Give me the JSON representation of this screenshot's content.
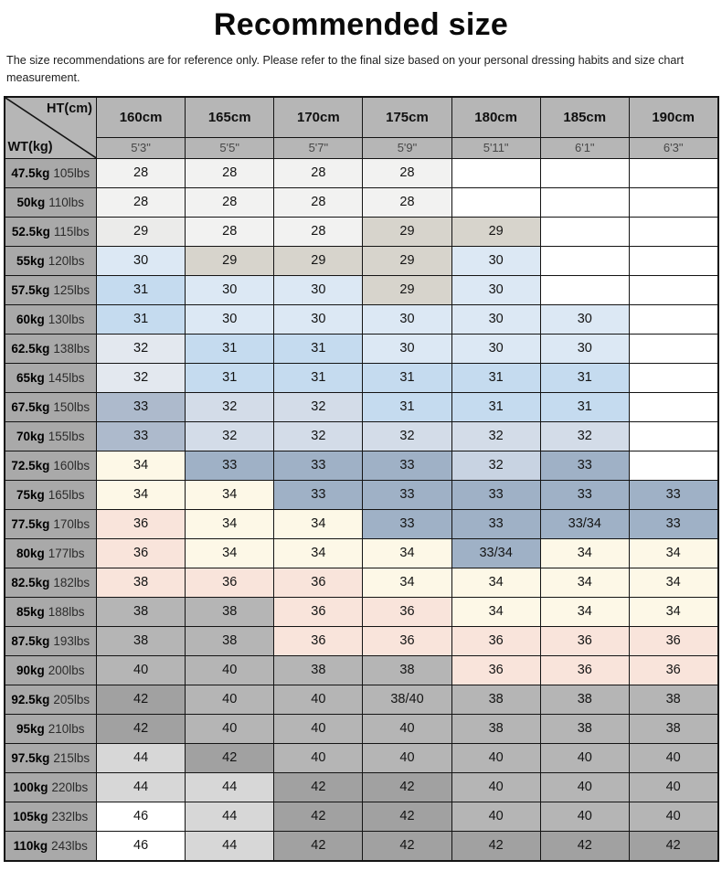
{
  "page": {
    "title": "Recommended size",
    "disclaimer": "The size recommendations are for reference only. Please refer to the final size based on your personal dressing habits and size chart measurement."
  },
  "chart_data": {
    "type": "table",
    "title": "Recommended size",
    "corner": {
      "ht": "HT(cm)",
      "wt": "WT(kg)"
    },
    "columns_cm": [
      "160cm",
      "165cm",
      "170cm",
      "175cm",
      "180cm",
      "185cm",
      "190cm"
    ],
    "columns_ft": [
      "5'3\"",
      "5'5\"",
      "5'7\"",
      "5'9\"",
      "5'11\"",
      "6'1\"",
      "6'3\""
    ],
    "rows": [
      {
        "kg": "47.5kg",
        "lbs": "105lbs",
        "sizes": [
          "28",
          "28",
          "28",
          "28",
          "",
          "",
          ""
        ]
      },
      {
        "kg": "50kg",
        "lbs": "110lbs",
        "sizes": [
          "28",
          "28",
          "28",
          "28",
          "",
          "",
          ""
        ]
      },
      {
        "kg": "52.5kg",
        "lbs": "115lbs",
        "sizes": [
          "29",
          "28",
          "28",
          "29",
          "29",
          "",
          ""
        ]
      },
      {
        "kg": "55kg",
        "lbs": "120lbs",
        "sizes": [
          "30",
          "29",
          "29",
          "29",
          "30",
          "",
          ""
        ]
      },
      {
        "kg": "57.5kg",
        "lbs": "125lbs",
        "sizes": [
          "31",
          "30",
          "30",
          "29",
          "30",
          "",
          ""
        ]
      },
      {
        "kg": "60kg",
        "lbs": "130lbs",
        "sizes": [
          "31",
          "30",
          "30",
          "30",
          "30",
          "30",
          ""
        ]
      },
      {
        "kg": "62.5kg",
        "lbs": "138lbs",
        "sizes": [
          "32",
          "31",
          "31",
          "30",
          "30",
          "30",
          ""
        ]
      },
      {
        "kg": "65kg",
        "lbs": "145lbs",
        "sizes": [
          "32",
          "31",
          "31",
          "31",
          "31",
          "31",
          ""
        ]
      },
      {
        "kg": "67.5kg",
        "lbs": "150lbs",
        "sizes": [
          "33",
          "32",
          "32",
          "31",
          "31",
          "31",
          ""
        ]
      },
      {
        "kg": "70kg",
        "lbs": "155lbs",
        "sizes": [
          "33",
          "32",
          "32",
          "32",
          "32",
          "32",
          ""
        ]
      },
      {
        "kg": "72.5kg",
        "lbs": "160lbs",
        "sizes": [
          "34",
          "33",
          "33",
          "33",
          "32",
          "33",
          ""
        ]
      },
      {
        "kg": "75kg",
        "lbs": "165lbs",
        "sizes": [
          "34",
          "34",
          "33",
          "33",
          "33",
          "33",
          "33"
        ]
      },
      {
        "kg": "77.5kg",
        "lbs": "170lbs",
        "sizes": [
          "36",
          "34",
          "34",
          "33",
          "33",
          "33/34",
          "33"
        ]
      },
      {
        "kg": "80kg",
        "lbs": "177lbs",
        "sizes": [
          "36",
          "34",
          "34",
          "34",
          "33/34",
          "34",
          "34"
        ]
      },
      {
        "kg": "82.5kg",
        "lbs": "182lbs",
        "sizes": [
          "38",
          "36",
          "36",
          "34",
          "34",
          "34",
          "34"
        ]
      },
      {
        "kg": "85kg",
        "lbs": "188lbs",
        "sizes": [
          "38",
          "38",
          "36",
          "36",
          "34",
          "34",
          "34"
        ]
      },
      {
        "kg": "87.5kg",
        "lbs": "193lbs",
        "sizes": [
          "38",
          "38",
          "36",
          "36",
          "36",
          "36",
          "36"
        ]
      },
      {
        "kg": "90kg",
        "lbs": "200lbs",
        "sizes": [
          "40",
          "40",
          "38",
          "38",
          "36",
          "36",
          "36"
        ]
      },
      {
        "kg": "92.5kg",
        "lbs": "205lbs",
        "sizes": [
          "42",
          "40",
          "40",
          "38/40",
          "38",
          "38",
          "38"
        ]
      },
      {
        "kg": "95kg",
        "lbs": "210lbs",
        "sizes": [
          "42",
          "40",
          "40",
          "40",
          "38",
          "38",
          "38"
        ]
      },
      {
        "kg": "97.5kg",
        "lbs": "215lbs",
        "sizes": [
          "44",
          "42",
          "40",
          "40",
          "40",
          "40",
          "40"
        ]
      },
      {
        "kg": "100kg",
        "lbs": "220lbs",
        "sizes": [
          "44",
          "44",
          "42",
          "42",
          "40",
          "40",
          "40"
        ]
      },
      {
        "kg": "105kg",
        "lbs": "232lbs",
        "sizes": [
          "46",
          "44",
          "42",
          "42",
          "40",
          "40",
          "40"
        ]
      },
      {
        "kg": "110kg",
        "lbs": "243lbs",
        "sizes": [
          "46",
          "44",
          "42",
          "42",
          "42",
          "42",
          "42"
        ]
      }
    ]
  },
  "styles": {
    "header_bg": "#b6b6b6",
    "row_label_bg": "#a9a9a9",
    "border_color": "#141414",
    "palette": {
      "g0": "#f2f2f1",
      "g1": "#ebebea",
      "wg": "#d7d4cc",
      "b0": "#dce8f4",
      "b1": "#c5dbef",
      "bg0": "#e3e8ef",
      "bg1": "#d3dce8",
      "bg2": "#c8d3e2",
      "bg3": "#adbacc",
      "bg4": "#9fb1c6",
      "cr": "#fdf8e7",
      "pk": "#f9e4db",
      "mg": "#b5b5b5",
      "dg": "#a1a1a1",
      "lg": "#d7d7d7",
      "wh": "#ffffff"
    },
    "cell_colors": [
      [
        "g0",
        "g0",
        "g0",
        "g0",
        "wh",
        "wh",
        "wh"
      ],
      [
        "g0",
        "g0",
        "g0",
        "g0",
        "wh",
        "wh",
        "wh"
      ],
      [
        "g1",
        "g0",
        "g0",
        "wg",
        "wg",
        "wh",
        "wh"
      ],
      [
        "b0",
        "wg",
        "wg",
        "wg",
        "b0",
        "wh",
        "wh"
      ],
      [
        "b1",
        "b0",
        "b0",
        "wg",
        "b0",
        "wh",
        "wh"
      ],
      [
        "b1",
        "b0",
        "b0",
        "b0",
        "b0",
        "b0",
        "wh"
      ],
      [
        "bg0",
        "b1",
        "b1",
        "b0",
        "b0",
        "b0",
        "wh"
      ],
      [
        "bg0",
        "b1",
        "b1",
        "b1",
        "b1",
        "b1",
        "wh"
      ],
      [
        "bg3",
        "bg1",
        "bg1",
        "b1",
        "b1",
        "b1",
        "wh"
      ],
      [
        "bg3",
        "bg1",
        "bg1",
        "bg1",
        "bg1",
        "bg1",
        "wh"
      ],
      [
        "cr",
        "bg4",
        "bg4",
        "bg4",
        "bg2",
        "bg4",
        "wh"
      ],
      [
        "cr",
        "cr",
        "bg4",
        "bg4",
        "bg4",
        "bg4",
        "bg4"
      ],
      [
        "pk",
        "cr",
        "cr",
        "bg4",
        "bg4",
        "bg4",
        "bg4"
      ],
      [
        "pk",
        "cr",
        "cr",
        "cr",
        "bg4",
        "cr",
        "cr"
      ],
      [
        "pk",
        "pk",
        "pk",
        "cr",
        "cr",
        "cr",
        "cr"
      ],
      [
        "mg",
        "mg",
        "pk",
        "pk",
        "cr",
        "cr",
        "cr"
      ],
      [
        "mg",
        "mg",
        "pk",
        "pk",
        "pk",
        "pk",
        "pk"
      ],
      [
        "mg",
        "mg",
        "mg",
        "mg",
        "pk",
        "pk",
        "pk"
      ],
      [
        "dg",
        "mg",
        "mg",
        "mg",
        "mg",
        "mg",
        "mg"
      ],
      [
        "dg",
        "mg",
        "mg",
        "mg",
        "mg",
        "mg",
        "mg"
      ],
      [
        "lg",
        "dg",
        "mg",
        "mg",
        "mg",
        "mg",
        "mg"
      ],
      [
        "lg",
        "lg",
        "dg",
        "dg",
        "mg",
        "mg",
        "mg"
      ],
      [
        "wh",
        "lg",
        "dg",
        "dg",
        "mg",
        "mg",
        "mg"
      ],
      [
        "wh",
        "lg",
        "dg",
        "dg",
        "dg",
        "dg",
        "dg"
      ]
    ]
  }
}
